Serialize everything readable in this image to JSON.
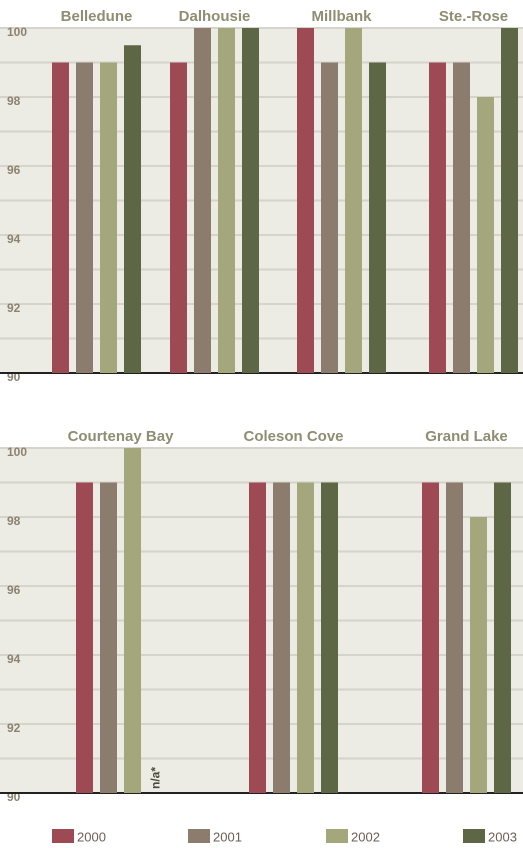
{
  "legend": [
    {
      "name": "2000",
      "color": "#9e4a55"
    },
    {
      "name": "2001",
      "color": "#8b7c6d"
    },
    {
      "name": "2002",
      "color": "#a4a77c"
    },
    {
      "name": "2003",
      "color": "#5d6746"
    }
  ],
  "chart_data": [
    {
      "type": "bar",
      "categories": [
        "Belledune",
        "Dalhousie",
        "Millbank",
        "Ste.-Rose"
      ],
      "series": [
        {
          "values": [
            99,
            99,
            100,
            99
          ]
        },
        {
          "values": [
            99,
            100,
            99,
            99
          ]
        },
        {
          "values": [
            99,
            100,
            100,
            98
          ]
        },
        {
          "values": [
            99.5,
            100,
            99,
            100
          ]
        }
      ],
      "ylim": [
        90,
        100
      ],
      "yticks": [
        90,
        92,
        94,
        96,
        98,
        100
      ],
      "minor_yticks": [
        91,
        93,
        95,
        97,
        99
      ],
      "grid": true
    },
    {
      "type": "bar",
      "categories": [
        "Courtenay Bay",
        "Coleson Cove",
        "Grand Lake"
      ],
      "series": [
        {
          "values": [
            99,
            99,
            99
          ]
        },
        {
          "values": [
            99,
            99,
            99
          ]
        },
        {
          "values": [
            100,
            99,
            98
          ]
        },
        {
          "values": [
            null,
            99,
            99
          ]
        }
      ],
      "annotation": "n/a*",
      "ylim": [
        90,
        100
      ],
      "yticks": [
        90,
        92,
        94,
        96,
        98,
        100
      ],
      "minor_yticks": [
        91,
        93,
        95,
        97,
        99
      ],
      "grid": true
    }
  ]
}
